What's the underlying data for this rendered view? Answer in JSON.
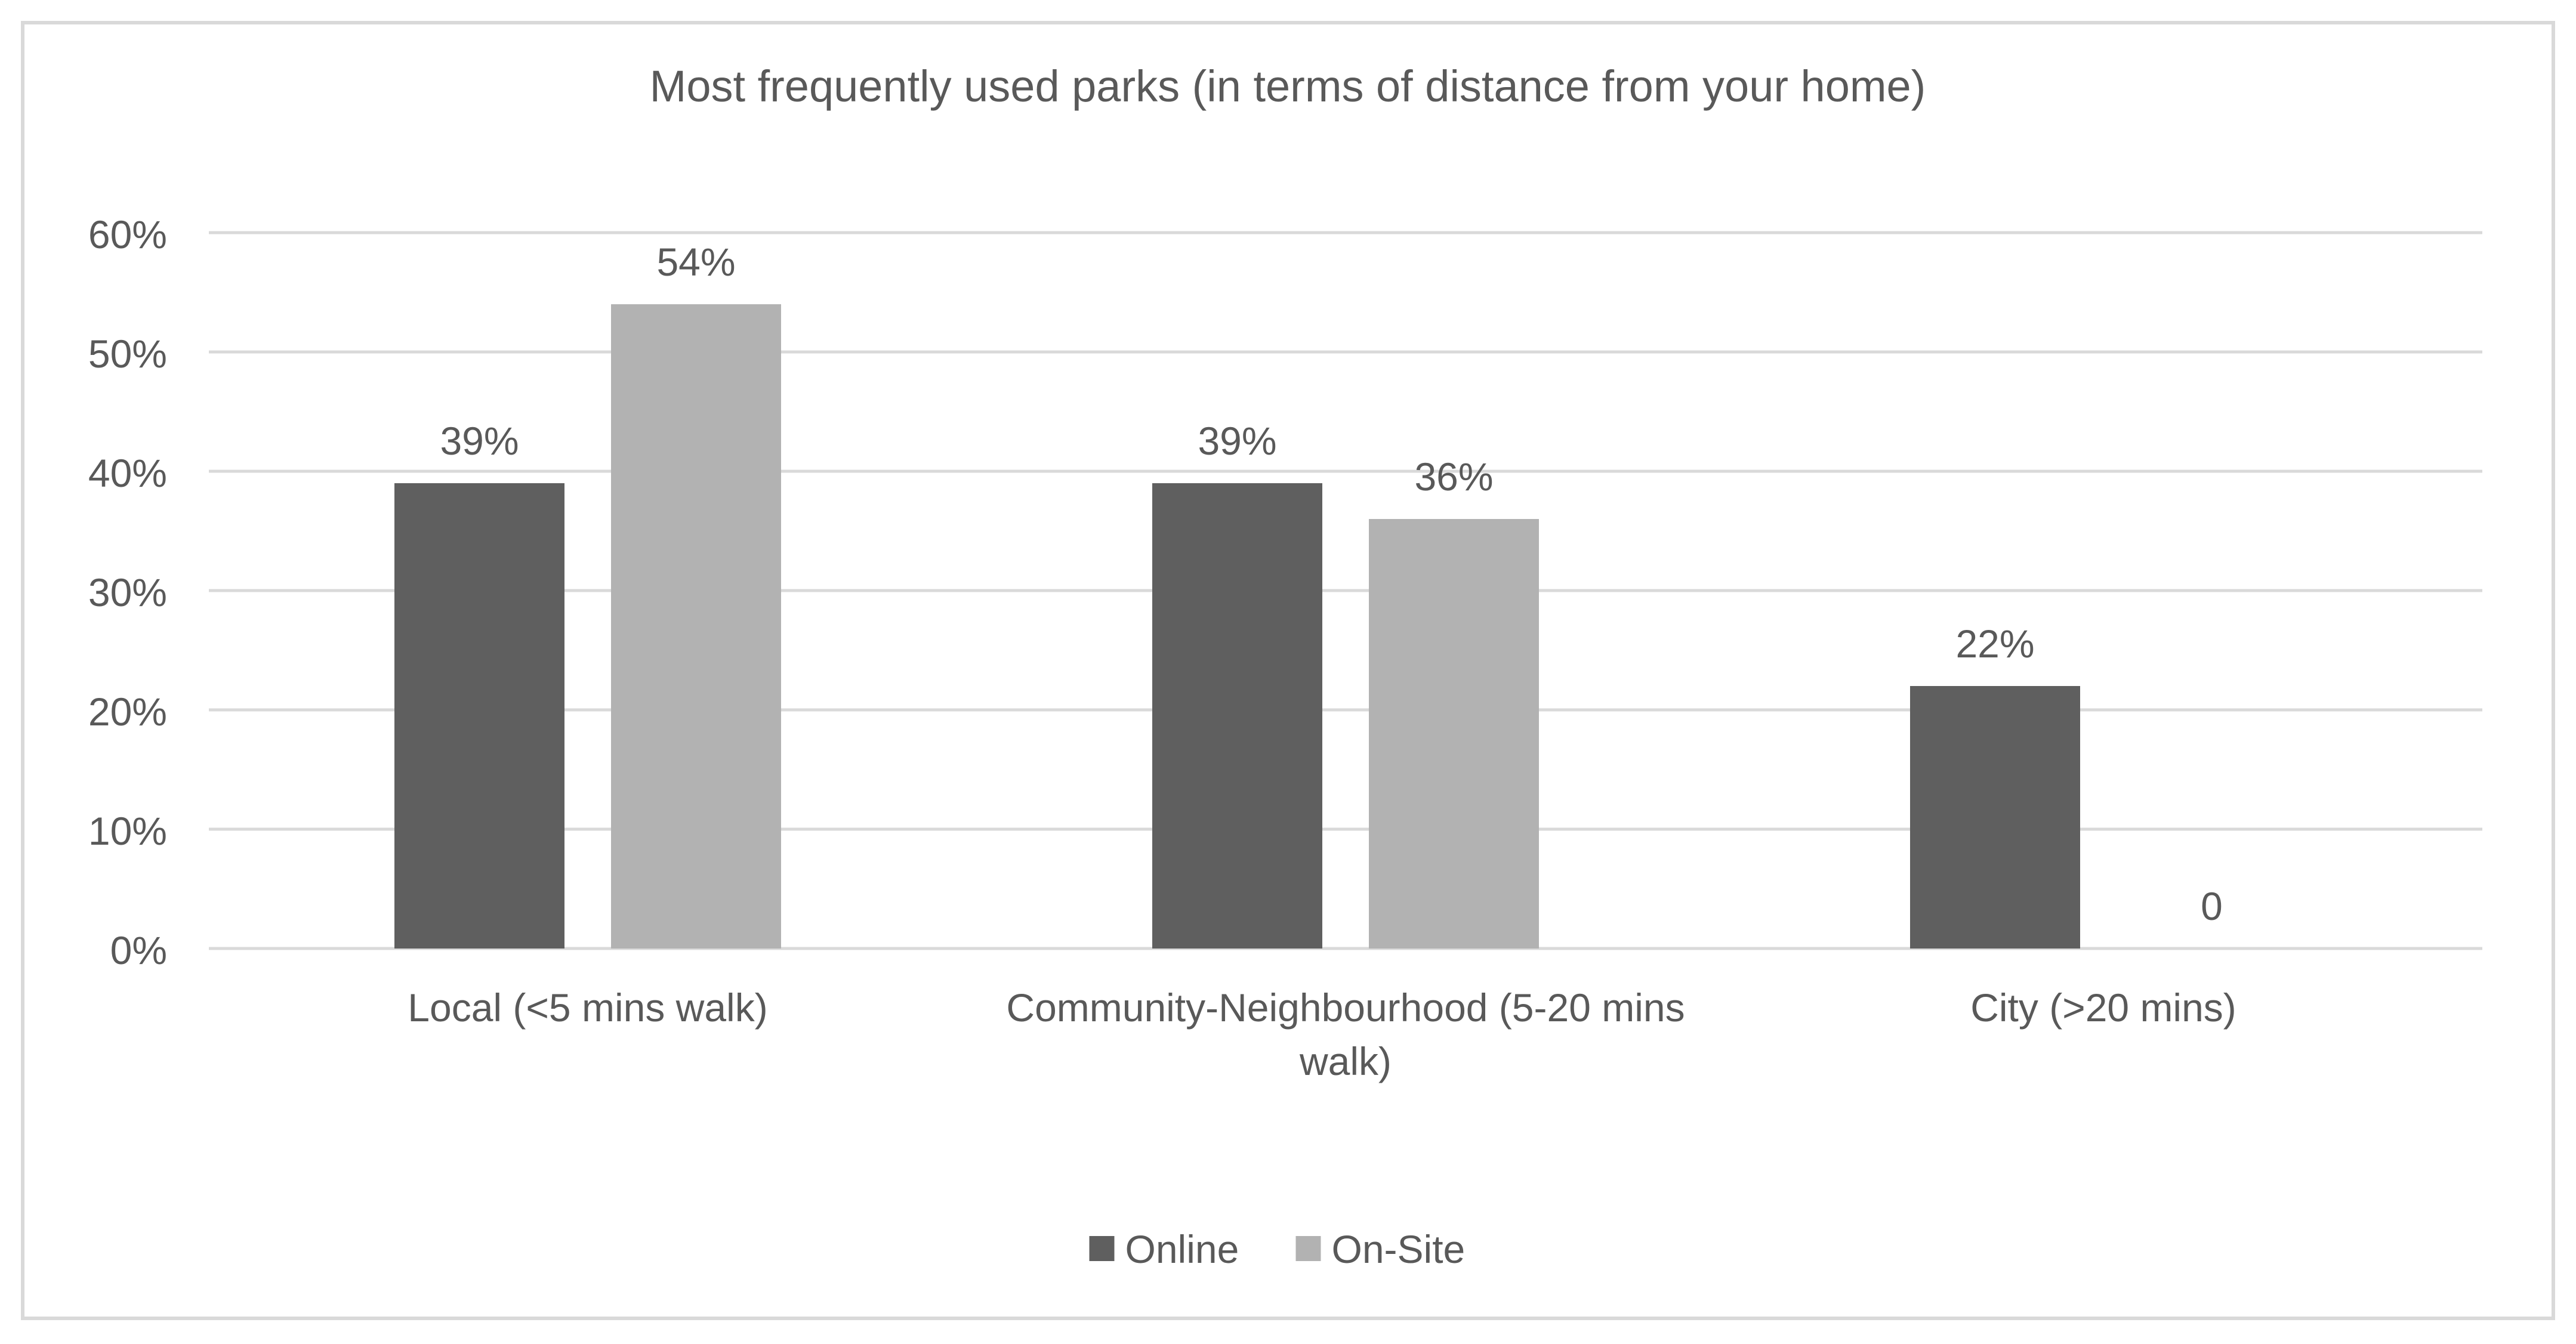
{
  "chart_data": {
    "type": "bar",
    "title": "Most frequently used parks (in terms of distance from your home)",
    "xlabel": "",
    "ylabel": "",
    "categories": [
      [
        "Local (<5 mins walk)"
      ],
      [
        "Community-Neighbourhood (5-20 mins",
        "walk)"
      ],
      [
        "City (>20 mins)"
      ]
    ],
    "series": [
      {
        "name": "Online",
        "color": "#5f5f5f",
        "values": [
          39,
          39,
          22
        ],
        "labels": [
          "39%",
          "39%",
          "22%"
        ]
      },
      {
        "name": "On-Site",
        "color": "#b2b2b2",
        "values": [
          54,
          36,
          0
        ],
        "labels": [
          "54%",
          "36%",
          "0"
        ]
      }
    ],
    "y_ticks": [
      "0%",
      "10%",
      "20%",
      "30%",
      "40%",
      "50%",
      "60%"
    ],
    "ylim": [
      0,
      60
    ],
    "grid": true,
    "legend_position": "bottom"
  },
  "colors": {
    "gridline": "#d9d9d9",
    "text": "#595959",
    "border": "#d9d9d9"
  }
}
